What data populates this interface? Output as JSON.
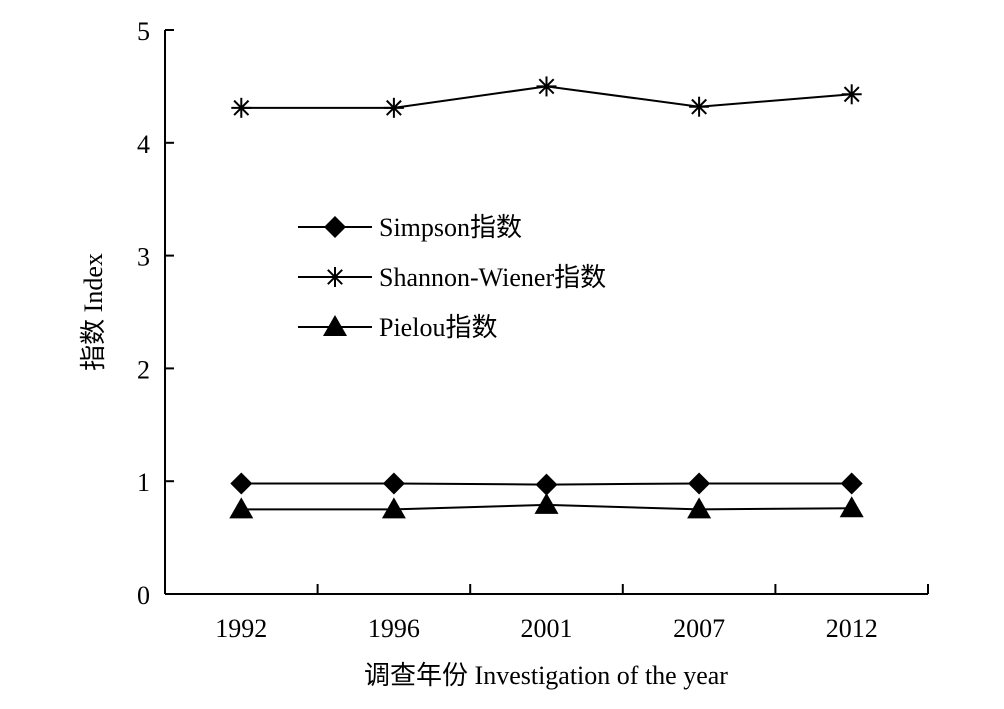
{
  "chart_data": {
    "type": "line",
    "title": "",
    "xlabel": "调查年份 Investigation of the year",
    "ylabel": "指数 Index",
    "categories": [
      "1992",
      "1996",
      "2001",
      "2007",
      "2012"
    ],
    "ylim": [
      0,
      5
    ],
    "yticks": [
      "0",
      "1",
      "2",
      "3",
      "4",
      "5"
    ],
    "grid": false,
    "legend_position": "center-left inside plot",
    "series": [
      {
        "name": "Simpson指数",
        "marker": "diamond",
        "values": [
          0.98,
          0.98,
          0.97,
          0.98,
          0.98
        ]
      },
      {
        "name": "Shannon-Wiener指数",
        "marker": "asterisk",
        "values": [
          4.31,
          4.31,
          4.5,
          4.32,
          4.43
        ]
      },
      {
        "name": "Pielou指数",
        "marker": "triangle",
        "values": [
          0.75,
          0.75,
          0.79,
          0.75,
          0.76
        ]
      }
    ],
    "colors": {
      "line": "#000000",
      "marker": "#000000"
    }
  }
}
